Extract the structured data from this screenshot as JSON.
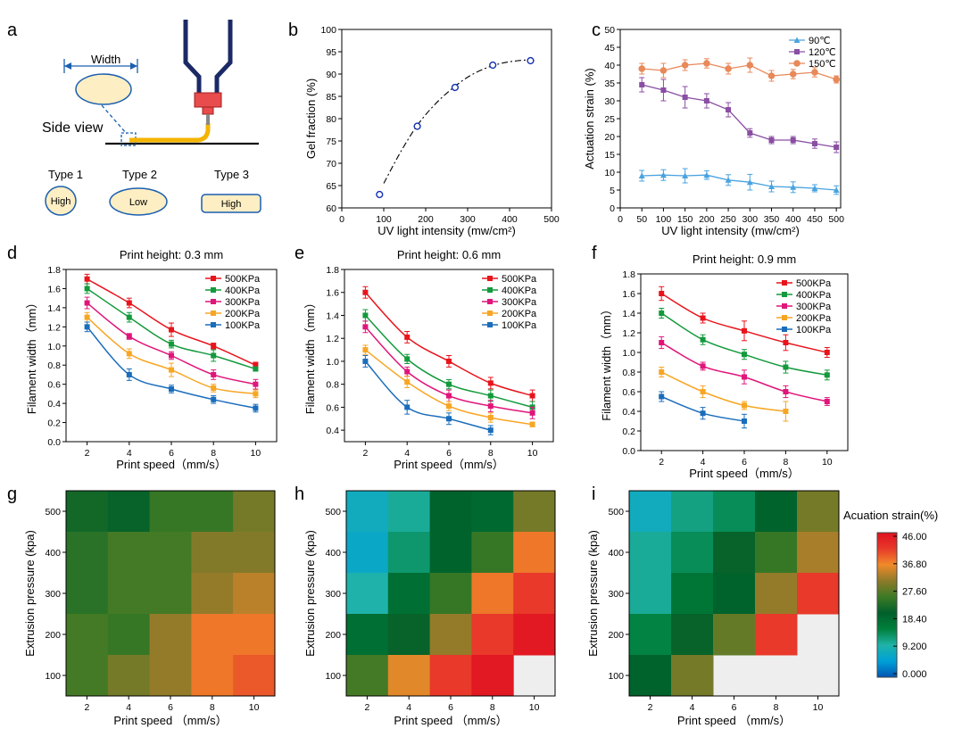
{
  "colors": {
    "series_palette": [
      "#e8141c",
      "#139a3c",
      "#e0157a",
      "#f7a623",
      "#1a6dbb"
    ],
    "c_palette": [
      "#4aa3df",
      "#8a4ea3",
      "#e8895a"
    ],
    "colorbar_stops": [
      "#0056b3",
      "#00a0d8",
      "#1fb3a8",
      "#00803c",
      "#00602a",
      "#3d7a25",
      "#8e7a2a",
      "#f08a2a",
      "#e83a2a",
      "#e01020"
    ],
    "empty_cell": "#eeeeee"
  },
  "schematic": {
    "width_label": "Width",
    "side_view_label": "Side view",
    "types": [
      {
        "name": "Type 1",
        "value": "High",
        "shape": "ellipse-tall"
      },
      {
        "name": "Type 2",
        "value": "Low",
        "shape": "ellipse-wide"
      },
      {
        "name": "Type 3",
        "value": "High",
        "shape": "rounded-rect"
      }
    ]
  },
  "colorbar": {
    "title": "Acuation strain(%)",
    "ticks": [
      "46.00",
      "36.80",
      "27.60",
      "18.40",
      "9.200",
      "0.000"
    ]
  },
  "chart_data": [
    {
      "panel": "b",
      "type": "scatter",
      "xlabel": "UV light intensity  (mw/cm²)",
      "ylabel": "Gel fraction (%)",
      "xlim": [
        0,
        500
      ],
      "ylim": [
        60,
        100
      ],
      "xticks": [
        0,
        100,
        200,
        300,
        400,
        500
      ],
      "yticks": [
        60,
        65,
        70,
        75,
        80,
        85,
        90,
        95,
        100
      ],
      "x": [
        90,
        180,
        270,
        360,
        450
      ],
      "y": [
        63,
        78.3,
        87,
        92,
        93
      ],
      "fit_line": "dash-dot",
      "fit_x": [
        100,
        140,
        180,
        220,
        260,
        300,
        340,
        380,
        420,
        450
      ],
      "fit_y": [
        65.5,
        72.5,
        78.5,
        83.0,
        86.5,
        89.3,
        91.2,
        92.4,
        93.0,
        93.2
      ]
    },
    {
      "panel": "c",
      "type": "line",
      "xlabel": "UV light intensity  (mw/cm²)",
      "ylabel": "Actuation strain (%)",
      "xlim": [
        0,
        510
      ],
      "ylim": [
        0,
        50
      ],
      "xticks": [
        0,
        50,
        100,
        150,
        200,
        250,
        300,
        350,
        400,
        450,
        500
      ],
      "yticks": [
        0,
        5,
        10,
        15,
        20,
        25,
        30,
        35,
        40,
        45,
        50
      ],
      "x": [
        50,
        100,
        150,
        200,
        250,
        300,
        350,
        400,
        450,
        500
      ],
      "legend_position": "top-right",
      "series": [
        {
          "name": "90℃",
          "marker": "triangle",
          "values": [
            9,
            9.2,
            9,
            9.2,
            7.8,
            7.2,
            6,
            5.8,
            5.5,
            5
          ],
          "errors": [
            1.5,
            1.5,
            2,
            1.2,
            1.5,
            2.2,
            1.5,
            1.5,
            1,
            1.2
          ]
        },
        {
          "name": "120℃",
          "marker": "square",
          "values": [
            34.5,
            33,
            31,
            30,
            27.5,
            21,
            19,
            19,
            18,
            17
          ],
          "errors": [
            2,
            3,
            3,
            2,
            2,
            1.2,
            1,
            1,
            1.3,
            1.5
          ]
        },
        {
          "name": "150℃",
          "marker": "circle",
          "values": [
            39,
            38.5,
            40,
            40.5,
            39,
            40,
            37,
            37.5,
            38,
            36
          ],
          "errors": [
            1.5,
            2,
            1.5,
            1.3,
            1.5,
            2,
            1.5,
            1.3,
            1.3,
            1
          ]
        }
      ]
    },
    {
      "panel": "d",
      "type": "line",
      "title": "Print height: 0.3 mm",
      "xlabel": "Print speed（mm/s）",
      "ylabel": "Filament width（mm）",
      "xlim": [
        1,
        11
      ],
      "ylim": [
        0,
        1.8
      ],
      "xticks": [
        2,
        4,
        6,
        8,
        10
      ],
      "yticks": [
        0.0,
        0.2,
        0.4,
        0.6,
        0.8,
        1.0,
        1.2,
        1.4,
        1.6,
        1.8
      ],
      "x": [
        2,
        4,
        6,
        8,
        10
      ],
      "legend_position": "top-right",
      "series": [
        {
          "name": "500KPa",
          "values": [
            1.7,
            1.45,
            1.17,
            1.0,
            0.8
          ],
          "errors": [
            0.05,
            0.05,
            0.07,
            0.03,
            0.03
          ]
        },
        {
          "name": "400KPa",
          "values": [
            1.6,
            1.3,
            1.02,
            0.9,
            0.76
          ],
          "errors": [
            0.05,
            0.05,
            0.04,
            0.06,
            0.02
          ]
        },
        {
          "name": "300KPa",
          "values": [
            1.45,
            1.1,
            0.9,
            0.7,
            0.6
          ],
          "errors": [
            0.06,
            0.03,
            0.04,
            0.05,
            0.05
          ]
        },
        {
          "name": "200KPa",
          "values": [
            1.3,
            0.92,
            0.75,
            0.56,
            0.5
          ],
          "errors": [
            0.05,
            0.05,
            0.07,
            0.04,
            0.04
          ]
        },
        {
          "name": "100KPa",
          "values": [
            1.2,
            0.7,
            0.55,
            0.44,
            0.35
          ],
          "errors": [
            0.05,
            0.06,
            0.04,
            0.04,
            0.04
          ]
        }
      ]
    },
    {
      "panel": "e",
      "type": "line",
      "title": "Print height: 0.6 mm",
      "xlabel": "Print speed（mm/s）",
      "ylabel": "Filament width（mm）",
      "xlim": [
        1,
        11
      ],
      "ylim": [
        0.3,
        1.8
      ],
      "xticks": [
        2,
        4,
        6,
        8,
        10
      ],
      "yticks": [
        0.4,
        0.6,
        0.8,
        1.0,
        1.2,
        1.4,
        1.6,
        1.8
      ],
      "x": [
        2,
        4,
        6,
        8,
        10
      ],
      "legend_position": "top-right",
      "series": [
        {
          "name": "500KPa",
          "values": [
            1.6,
            1.21,
            1.0,
            0.81,
            0.7
          ],
          "errors": [
            0.05,
            0.05,
            0.05,
            0.05,
            0.05
          ]
        },
        {
          "name": "400KPa",
          "values": [
            1.4,
            1.02,
            0.8,
            0.7,
            0.6
          ],
          "errors": [
            0.05,
            0.04,
            0.04,
            0.05,
            0.05
          ]
        },
        {
          "name": "300KPa",
          "values": [
            1.3,
            0.91,
            0.7,
            0.61,
            0.55
          ],
          "errors": [
            0.05,
            0.04,
            0.05,
            0.05,
            0.05
          ]
        },
        {
          "name": "200KPa",
          "values": [
            1.1,
            0.82,
            0.61,
            0.51,
            0.45
          ],
          "errors": [
            0.04,
            0.05,
            0.04,
            0.04,
            0.02
          ]
        },
        {
          "name": "100KPa",
          "values": [
            1.0,
            0.6,
            0.5,
            0.4
          ],
          "x": [
            2,
            4,
            6,
            8
          ],
          "errors": [
            0.05,
            0.06,
            0.05,
            0.04
          ]
        }
      ]
    },
    {
      "panel": "f",
      "type": "line",
      "title": "Print height: 0.9 mm",
      "xlabel": "Print speed（mm/s）",
      "ylabel": "Filament width（mm）",
      "xlim": [
        1,
        11
      ],
      "ylim": [
        0,
        1.8
      ],
      "xticks": [
        2,
        4,
        6,
        8,
        10
      ],
      "yticks": [
        0.0,
        0.2,
        0.4,
        0.6,
        0.8,
        1.0,
        1.2,
        1.4,
        1.6,
        1.8
      ],
      "x": [
        2,
        4,
        6,
        8,
        10
      ],
      "legend_position": "top-right",
      "series": [
        {
          "name": "500KPa",
          "values": [
            1.6,
            1.35,
            1.22,
            1.1,
            1.0
          ],
          "errors": [
            0.07,
            0.05,
            0.1,
            0.08,
            0.05
          ]
        },
        {
          "name": "400KPa",
          "values": [
            1.4,
            1.13,
            0.98,
            0.85,
            0.77
          ],
          "errors": [
            0.05,
            0.05,
            0.05,
            0.06,
            0.05
          ]
        },
        {
          "name": "300KPa",
          "values": [
            1.1,
            0.86,
            0.75,
            0.6,
            0.5
          ],
          "errors": [
            0.06,
            0.04,
            0.07,
            0.06,
            0.04
          ]
        },
        {
          "name": "200KPa",
          "values": [
            0.8,
            0.6,
            0.46,
            0.4
          ],
          "x": [
            2,
            4,
            6,
            8
          ],
          "errors": [
            0.05,
            0.06,
            0.04,
            0.1
          ]
        },
        {
          "name": "100KPa",
          "values": [
            0.55,
            0.38,
            0.3
          ],
          "x": [
            2,
            4,
            6
          ],
          "errors": [
            0.05,
            0.06,
            0.07
          ]
        }
      ]
    },
    {
      "panel": "g",
      "type": "heatmap",
      "xlabel": "Print speed （mm/s）",
      "ylabel": "Extrusion pressure (kpa)",
      "x": [
        2,
        4,
        6,
        8,
        10
      ],
      "y": [
        500,
        400,
        300,
        200,
        100
      ],
      "z": [
        [
          22,
          21,
          25,
          25,
          29
        ],
        [
          24,
          26,
          26,
          30,
          30
        ],
        [
          24,
          26,
          26,
          31,
          33
        ],
        [
          26,
          25,
          31,
          37,
          37
        ],
        [
          26,
          29,
          31,
          37,
          39
        ]
      ]
    },
    {
      "panel": "h",
      "type": "heatmap",
      "xlabel": "Print speed （mm/s）",
      "ylabel": "Extrusion pressure (kpa)",
      "x": [
        2,
        4,
        6,
        8,
        10
      ],
      "y": [
        500,
        400,
        300,
        200,
        100
      ],
      "z": [
        [
          8,
          11,
          20,
          19,
          29
        ],
        [
          7,
          13,
          20,
          25,
          37
        ],
        [
          10,
          18,
          25,
          37,
          41
        ],
        [
          18,
          21,
          31,
          41,
          45
        ],
        [
          26,
          35,
          41,
          45,
          null
        ]
      ]
    },
    {
      "panel": "i",
      "type": "heatmap",
      "xlabel": "Print speed （mm/s）",
      "ylabel": "Extrusion pressure (kpa)",
      "x": [
        2,
        4,
        6,
        8,
        10
      ],
      "y": [
        500,
        400,
        300,
        200,
        100
      ],
      "z": [
        [
          8,
          12,
          14,
          20,
          29
        ],
        [
          11,
          14,
          21,
          25,
          32
        ],
        [
          11,
          17,
          20,
          31,
          41
        ],
        [
          15,
          21,
          28,
          41,
          null
        ],
        [
          20,
          29,
          null,
          null,
          null
        ]
      ]
    }
  ]
}
